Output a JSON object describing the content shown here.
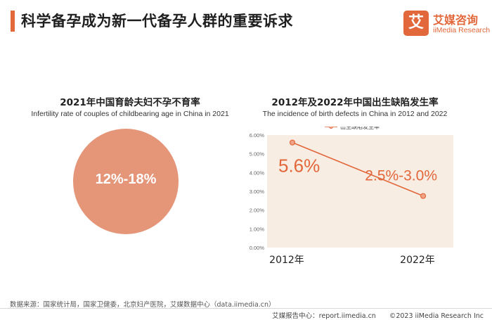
{
  "header": {
    "title": "科学备孕成为新一代备孕人群的重要诉求"
  },
  "logo": {
    "mark": "艾",
    "name_cn": "艾媒咨询",
    "name_en": "iiMedia Research"
  },
  "left_panel": {
    "title": "2021年中国育龄夫妇不孕不育率",
    "subtitle": "Infertility rate of couples of childbearing age in China in 2021",
    "value_label": "12%-18%",
    "color": "#e59578"
  },
  "chart_data": {
    "type": "line",
    "title": "2012年及2022年中国出生缺陷发生率",
    "subtitle": "The incidence of birth defects in China in 2012 and 2022",
    "categories": [
      "2012年",
      "2022年"
    ],
    "series": [
      {
        "name": "出生缺陷发生率",
        "values": [
          5.6,
          2.75
        ],
        "data_labels": [
          "5.6%",
          "2.5%-3.0%"
        ],
        "color": "#e2673a"
      }
    ],
    "ylim": [
      0,
      6
    ],
    "yticks": [
      "0.00%",
      "1.00%",
      "2.00%",
      "3.00%",
      "4.00%",
      "5.00%",
      "6.00%"
    ],
    "legend": "top-center",
    "grid": false,
    "plot_background": "#f7ede3"
  },
  "footer": {
    "source": "数据来源：国家统计局，国家卫健委，北京妇产医院，艾媒数据中心（data.iimedia.cn）",
    "copyright": "艾媒报告中心：report.iimedia.cn　　©2023  iiMedia Research  Inc"
  }
}
